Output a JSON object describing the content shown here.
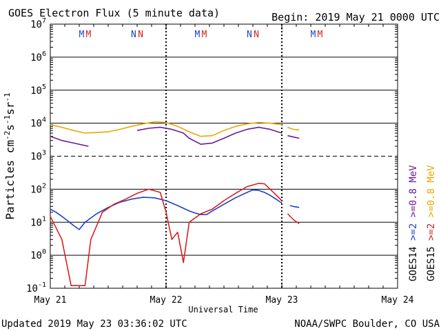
{
  "header": {
    "title": "GOES Electron Flux (5 minute data)",
    "begin": "Begin: 2019 May 21 0000 UTC"
  },
  "footer": {
    "updated": "Updated 2019 May 23 03:36:02 UTC",
    "credit": "NOAA/SWPC Boulder, CO USA"
  },
  "chart_data": {
    "type": "line",
    "title": "GOES Electron Flux (5 minute data)",
    "xlabel": "Universal Time",
    "ylabel_parts": [
      "Particles cm",
      "-2",
      "s",
      "-1",
      "sr",
      "-1"
    ],
    "y_scale": "log",
    "ylim": [
      0.1,
      10000000
    ],
    "y_ticks": [
      {
        "base": "10",
        "exp": "7",
        "value": 10000000
      },
      {
        "base": "10",
        "exp": "6",
        "value": 1000000
      },
      {
        "base": "10",
        "exp": "5",
        "value": 100000
      },
      {
        "base": "10",
        "exp": "4",
        "value": 10000
      },
      {
        "base": "10",
        "exp": "3",
        "value": 1000
      },
      {
        "base": "10",
        "exp": "2",
        "value": 100
      },
      {
        "base": "10",
        "exp": "1",
        "value": 10
      },
      {
        "base": "10",
        "exp": "0",
        "value": 1
      },
      {
        "base": "10",
        "exp": "-1",
        "value": 0.1
      }
    ],
    "xlim_days": [
      0,
      3
    ],
    "x_ticks": [
      {
        "label": "May 21",
        "day": 0
      },
      {
        "label": "May 22",
        "day": 1
      },
      {
        "label": "May 23",
        "day": 2
      },
      {
        "label": "May 24",
        "day": 3
      }
    ],
    "threshold_line": 1000,
    "noon_midnight_markers": [
      {
        "day": 0,
        "text": "M",
        "color": "#1f3fc8"
      },
      {
        "day": 0,
        "text": "M",
        "color": "#d62020"
      },
      {
        "day": 0,
        "text": "N",
        "color": "#1f3fc8"
      },
      {
        "day": 0,
        "text": "N",
        "color": "#d62020"
      },
      {
        "day": 1,
        "text": "M",
        "color": "#1f3fc8"
      },
      {
        "day": 1,
        "text": "M",
        "color": "#d62020"
      },
      {
        "day": 1,
        "text": "N",
        "color": "#1f3fc8"
      },
      {
        "day": 1,
        "text": "N",
        "color": "#d62020"
      },
      {
        "day": 2,
        "text": "M",
        "color": "#1f3fc8"
      },
      {
        "day": 2,
        "text": "M",
        "color": "#d62020"
      }
    ],
    "legend": {
      "satellites": [
        {
          "label": "GOES14",
          "color": "#000000"
        },
        {
          "label": "GOES15",
          "color": "#000000"
        }
      ],
      "energies": [
        {
          "label": ">=2",
          "color": "#1f3fc8"
        },
        {
          "label": ">=2",
          "color": "#d62020"
        },
        {
          "label": ">=0.8",
          "color": "#6a1a9a"
        },
        {
          "label": ">=0.8",
          "color": "#e8a800"
        }
      ],
      "unit": "MeV"
    },
    "series": [
      {
        "name": "GOES14 >=2 MeV",
        "color": "#1f3fc8",
        "points": [
          [
            0,
            25
          ],
          [
            0.05,
            20
          ],
          [
            0.1,
            15
          ],
          [
            0.15,
            11
          ],
          [
            0.2,
            8
          ],
          [
            0.25,
            6
          ],
          [
            0.3,
            10
          ],
          [
            0.4,
            18
          ],
          [
            0.5,
            28
          ],
          [
            0.6,
            40
          ],
          [
            0.7,
            50
          ],
          [
            0.8,
            57
          ],
          [
            0.9,
            55
          ],
          [
            1.0,
            45
          ],
          [
            1.1,
            32
          ],
          [
            1.2,
            22
          ],
          [
            1.25,
            19
          ],
          [
            1.3,
            17
          ],
          [
            1.35,
            17
          ],
          [
            1.4,
            22
          ],
          [
            1.5,
            35
          ],
          [
            1.6,
            55
          ],
          [
            1.7,
            80
          ],
          [
            1.75,
            95
          ],
          [
            1.8,
            92
          ],
          [
            1.85,
            80
          ],
          [
            1.9,
            65
          ],
          [
            1.95,
            50
          ],
          [
            2.0,
            38
          ]
        ]
      },
      {
        "name": "GOES14 >=2 MeV (after gap)",
        "color": "#1f3fc8",
        "points": [
          [
            2.07,
            32
          ],
          [
            2.1,
            30
          ],
          [
            2.15,
            28
          ]
        ]
      },
      {
        "name": "GOES15 >=2 MeV",
        "color": "#d62020",
        "points": [
          [
            0,
            15
          ],
          [
            0.1,
            3
          ],
          [
            0.18,
            0.12
          ],
          [
            0.3,
            0.12
          ],
          [
            0.35,
            3
          ],
          [
            0.45,
            20
          ],
          [
            0.55,
            35
          ],
          [
            0.65,
            50
          ],
          [
            0.75,
            75
          ],
          [
            0.85,
            100
          ],
          [
            0.95,
            80
          ],
          [
            1.0,
            20
          ],
          [
            1.05,
            3
          ],
          [
            1.1,
            5
          ],
          [
            1.15,
            0.6
          ],
          [
            1.2,
            10
          ],
          [
            1.3,
            18
          ],
          [
            1.4,
            25
          ],
          [
            1.5,
            45
          ],
          [
            1.6,
            75
          ],
          [
            1.7,
            120
          ],
          [
            1.8,
            150
          ],
          [
            1.85,
            145
          ],
          [
            1.9,
            100
          ],
          [
            2.0,
            45
          ]
        ]
      },
      {
        "name": "GOES15 >=2 MeV (after gap)",
        "color": "#d62020",
        "points": [
          [
            2.05,
            18
          ],
          [
            2.1,
            12
          ],
          [
            2.15,
            9
          ]
        ]
      },
      {
        "name": "GOES14 >=0.8 MeV",
        "color": "#6a1a9a",
        "points": [
          [
            0,
            4000
          ],
          [
            0.1,
            3000
          ],
          [
            0.2,
            2500
          ],
          [
            0.33,
            2000
          ]
        ]
      },
      {
        "name": "GOES14 >=0.8 MeV (cont)",
        "color": "#6a1a9a",
        "points": [
          [
            0.75,
            6000
          ],
          [
            0.85,
            7000
          ],
          [
            0.95,
            7500
          ],
          [
            1.05,
            6500
          ],
          [
            1.15,
            5000
          ],
          [
            1.2,
            3500
          ],
          [
            1.3,
            2300
          ],
          [
            1.4,
            2500
          ],
          [
            1.5,
            3500
          ],
          [
            1.6,
            5000
          ],
          [
            1.7,
            6500
          ],
          [
            1.8,
            7500
          ],
          [
            1.9,
            6500
          ],
          [
            2.0,
            5000
          ]
        ]
      },
      {
        "name": "GOES14 >=0.8 MeV (after gap)",
        "color": "#6a1a9a",
        "points": [
          [
            2.05,
            4200
          ],
          [
            2.1,
            3800
          ],
          [
            2.15,
            3500
          ]
        ]
      },
      {
        "name": "GOES15 >=0.8 MeV",
        "color": "#e8a800",
        "points": [
          [
            0,
            9000
          ],
          [
            0.1,
            7500
          ],
          [
            0.2,
            6000
          ],
          [
            0.3,
            5000
          ],
          [
            0.4,
            5200
          ],
          [
            0.5,
            5500
          ],
          [
            0.6,
            6500
          ],
          [
            0.7,
            8000
          ],
          [
            0.8,
            9500
          ],
          [
            0.9,
            11000
          ],
          [
            1.0,
            10500
          ],
          [
            1.1,
            8000
          ],
          [
            1.2,
            5500
          ],
          [
            1.3,
            4000
          ],
          [
            1.4,
            4200
          ],
          [
            1.5,
            6000
          ],
          [
            1.6,
            8000
          ],
          [
            1.7,
            9500
          ],
          [
            1.8,
            10500
          ],
          [
            1.9,
            10000
          ],
          [
            2.0,
            9000
          ]
        ]
      },
      {
        "name": "GOES15 >=0.8 MeV (after gap)",
        "color": "#e8a800",
        "points": [
          [
            2.05,
            7500
          ],
          [
            2.1,
            6500
          ],
          [
            2.15,
            6200
          ]
        ]
      }
    ]
  }
}
